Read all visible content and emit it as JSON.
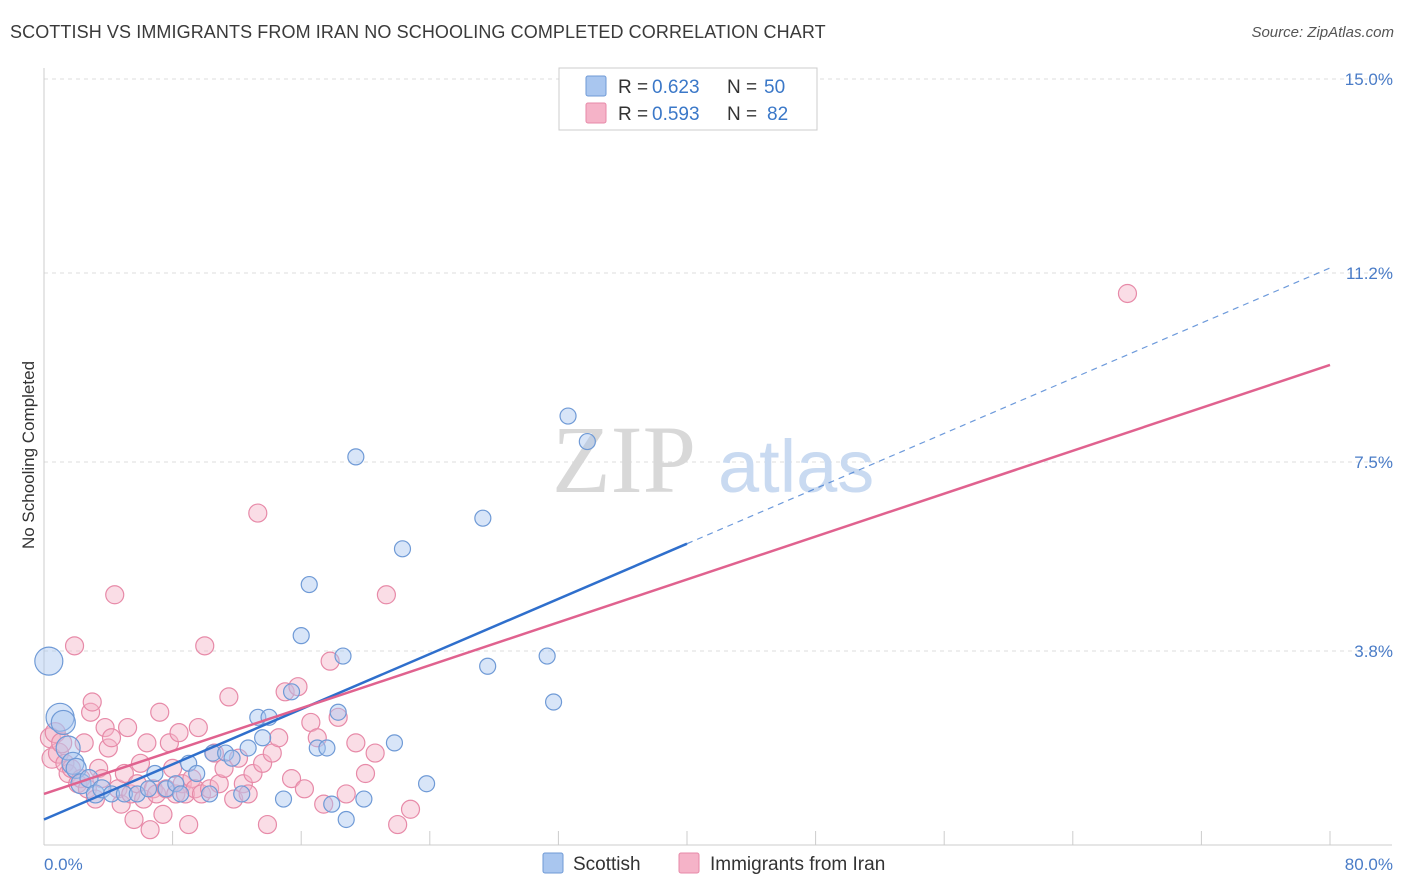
{
  "title": "SCOTTISH VS IMMIGRANTS FROM IRAN NO SCHOOLING COMPLETED CORRELATION CHART",
  "source": "Source: ZipAtlas.com",
  "watermark": {
    "zip": "ZIP",
    "atlas": "atlas"
  },
  "colors": {
    "scottish_fill": "#a9c6ef",
    "scottish_stroke": "#6f9ad6",
    "scottish_line": "#2f6fcc",
    "iran_fill": "#f5b3c8",
    "iran_stroke": "#e78aa8",
    "iran_line": "#e0628f",
    "tick_label": "#4a7cc7",
    "grid": "#dddddd"
  },
  "legend": {
    "r_label": "R =",
    "n_label": "N =",
    "rows": [
      {
        "r": "0.623",
        "n": "50"
      },
      {
        "r": "0.593",
        "n": "82"
      }
    ]
  },
  "chart_data": {
    "type": "scatter",
    "xlabel": "",
    "ylabel": "No Schooling Completed",
    "xlim": [
      0,
      80
    ],
    "ylim": [
      0,
      15
    ],
    "x_tick_labels": [
      {
        "value": 0,
        "label": "0.0%"
      },
      {
        "value": 80,
        "label": "80.0%"
      }
    ],
    "y_tick_labels": [
      {
        "value": 3.8,
        "label": "3.8%"
      },
      {
        "value": 7.5,
        "label": "7.5%"
      },
      {
        "value": 11.2,
        "label": "11.2%"
      },
      {
        "value": 15.0,
        "label": "15.0%"
      }
    ],
    "grid": "horizontal dashed",
    "legend_position": "top-center",
    "series": [
      {
        "name": "Scottish",
        "points": [
          [
            0.3,
            3.6,
            14
          ],
          [
            1.0,
            2.5,
            14
          ],
          [
            1.2,
            2.4,
            12
          ],
          [
            1.5,
            1.9,
            12
          ],
          [
            1.8,
            1.6,
            11
          ],
          [
            2.0,
            1.5,
            10
          ],
          [
            2.3,
            1.2,
            10
          ],
          [
            2.8,
            1.3,
            9
          ],
          [
            3.2,
            1.0,
            9
          ],
          [
            3.6,
            1.1,
            9
          ],
          [
            4.2,
            1.0,
            8
          ],
          [
            5.0,
            1.0,
            8
          ],
          [
            5.8,
            1.0,
            8
          ],
          [
            6.5,
            1.1,
            8
          ],
          [
            6.9,
            1.4,
            8
          ],
          [
            7.6,
            1.1,
            8
          ],
          [
            8.2,
            1.2,
            8
          ],
          [
            8.5,
            1.0,
            8
          ],
          [
            9.0,
            1.6,
            8
          ],
          [
            9.5,
            1.4,
            8
          ],
          [
            10.3,
            1.0,
            8
          ],
          [
            10.5,
            1.8,
            8
          ],
          [
            11.3,
            1.8,
            8
          ],
          [
            11.7,
            1.7,
            8
          ],
          [
            12.3,
            1.0,
            8
          ],
          [
            12.7,
            1.9,
            8
          ],
          [
            13.3,
            2.5,
            8
          ],
          [
            13.6,
            2.1,
            8
          ],
          [
            14.0,
            2.5,
            8
          ],
          [
            14.9,
            0.9,
            8
          ],
          [
            15.4,
            3.0,
            8
          ],
          [
            16.0,
            4.1,
            8
          ],
          [
            16.5,
            5.1,
            8
          ],
          [
            17.0,
            1.9,
            8
          ],
          [
            17.6,
            1.9,
            8
          ],
          [
            17.9,
            0.8,
            8
          ],
          [
            18.3,
            2.6,
            8
          ],
          [
            18.6,
            3.7,
            8
          ],
          [
            18.8,
            0.5,
            8
          ],
          [
            19.4,
            7.6,
            8
          ],
          [
            19.9,
            0.9,
            8
          ],
          [
            21.8,
            2.0,
            8
          ],
          [
            22.3,
            5.8,
            8
          ],
          [
            23.8,
            1.2,
            8
          ],
          [
            27.3,
            6.4,
            8
          ],
          [
            27.6,
            3.5,
            8
          ],
          [
            31.3,
            3.7,
            8
          ],
          [
            31.7,
            2.8,
            8
          ],
          [
            32.6,
            8.4,
            8
          ],
          [
            33.8,
            7.9,
            8
          ]
        ]
      },
      {
        "name": "Immigrants from Iran",
        "points": [
          [
            0.4,
            2.1,
            10
          ],
          [
            0.5,
            1.7,
            10
          ],
          [
            0.7,
            2.2,
            10
          ],
          [
            0.9,
            1.8,
            10
          ],
          [
            1.1,
            2.0,
            10
          ],
          [
            1.3,
            1.6,
            9
          ],
          [
            1.5,
            1.4,
            9
          ],
          [
            1.7,
            1.5,
            9
          ],
          [
            1.9,
            3.9,
            9
          ],
          [
            2.1,
            1.2,
            9
          ],
          [
            2.3,
            1.3,
            9
          ],
          [
            2.5,
            2.0,
            9
          ],
          [
            2.7,
            1.1,
            9
          ],
          [
            2.9,
            2.6,
            9
          ],
          [
            3.0,
            2.8,
            9
          ],
          [
            3.2,
            0.9,
            9
          ],
          [
            3.4,
            1.5,
            9
          ],
          [
            3.6,
            1.3,
            9
          ],
          [
            3.8,
            2.3,
            9
          ],
          [
            4.0,
            1.9,
            9
          ],
          [
            4.2,
            2.1,
            9
          ],
          [
            4.4,
            4.9,
            9
          ],
          [
            4.6,
            1.1,
            9
          ],
          [
            4.8,
            0.8,
            9
          ],
          [
            5.0,
            1.4,
            9
          ],
          [
            5.2,
            2.3,
            9
          ],
          [
            5.4,
            1.0,
            9
          ],
          [
            5.6,
            0.5,
            9
          ],
          [
            5.8,
            1.2,
            9
          ],
          [
            6.0,
            1.6,
            9
          ],
          [
            6.2,
            0.9,
            9
          ],
          [
            6.4,
            2.0,
            9
          ],
          [
            6.6,
            0.3,
            9
          ],
          [
            6.8,
            1.1,
            9
          ],
          [
            7.0,
            1.0,
            9
          ],
          [
            7.2,
            2.6,
            9
          ],
          [
            7.4,
            0.6,
            9
          ],
          [
            7.6,
            1.1,
            9
          ],
          [
            7.8,
            2.0,
            9
          ],
          [
            8.0,
            1.5,
            9
          ],
          [
            8.2,
            1.0,
            9
          ],
          [
            8.4,
            2.2,
            9
          ],
          [
            8.6,
            1.2,
            9
          ],
          [
            8.8,
            1.0,
            9
          ],
          [
            9.0,
            0.4,
            9
          ],
          [
            9.2,
            1.3,
            9
          ],
          [
            9.4,
            1.1,
            9
          ],
          [
            9.6,
            2.3,
            9
          ],
          [
            9.8,
            1.0,
            9
          ],
          [
            10.0,
            3.9,
            9
          ],
          [
            10.3,
            1.1,
            9
          ],
          [
            10.6,
            1.8,
            9
          ],
          [
            10.9,
            1.2,
            9
          ],
          [
            11.2,
            1.5,
            9
          ],
          [
            11.5,
            2.9,
            9
          ],
          [
            11.8,
            0.9,
            9
          ],
          [
            12.1,
            1.7,
            9
          ],
          [
            12.4,
            1.2,
            9
          ],
          [
            12.7,
            1.0,
            9
          ],
          [
            13.0,
            1.4,
            9
          ],
          [
            13.3,
            6.5,
            9
          ],
          [
            13.6,
            1.6,
            9
          ],
          [
            13.9,
            0.4,
            9
          ],
          [
            14.2,
            1.8,
            9
          ],
          [
            14.6,
            2.1,
            9
          ],
          [
            15.0,
            3.0,
            9
          ],
          [
            15.4,
            1.3,
            9
          ],
          [
            15.8,
            3.1,
            9
          ],
          [
            16.2,
            1.1,
            9
          ],
          [
            16.6,
            2.4,
            9
          ],
          [
            17.0,
            2.1,
            9
          ],
          [
            17.4,
            0.8,
            9
          ],
          [
            17.8,
            3.6,
            9
          ],
          [
            18.3,
            2.5,
            9
          ],
          [
            18.8,
            1.0,
            9
          ],
          [
            19.4,
            2.0,
            9
          ],
          [
            20.0,
            1.4,
            9
          ],
          [
            20.6,
            1.8,
            9
          ],
          [
            21.3,
            4.9,
            9
          ],
          [
            22.0,
            0.4,
            9
          ],
          [
            22.8,
            0.7,
            9
          ],
          [
            67.4,
            10.8,
            9
          ]
        ]
      }
    ],
    "trend_lines": [
      {
        "series": "Scottish",
        "x0": 0,
        "y0": 0.5,
        "x1": 40,
        "y1": 5.9,
        "dashed_to_x": 80,
        "dashed_to_y": 11.3
      },
      {
        "series": "Immigrants from Iran",
        "x0": 0,
        "y0": 1.0,
        "x1": 80,
        "y1": 9.4
      }
    ]
  },
  "bottom_legend": [
    "Scottish",
    "Immigrants from Iran"
  ]
}
